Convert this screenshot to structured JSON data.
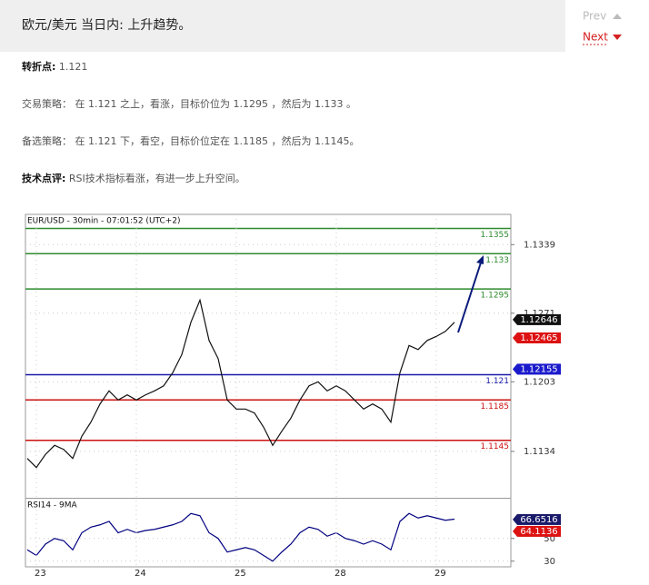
{
  "header": {
    "title": "欧元/美元 当日内: 上升趋势。"
  },
  "nav": {
    "prev": "Prev",
    "next": "Next"
  },
  "notes": [
    {
      "label": "转折点:",
      "text": " 1.121"
    },
    {
      "label": "交易策略：",
      "text": " 在 1.121 之上，看涨，目标价位为 1.1295 ，然后为 1.133 。"
    },
    {
      "label": "备选策略：",
      "text": " 在 1.121 下，看空，目标价位定在 1.1185 ，然后为 1.1145。"
    },
    {
      "label": "技术点评:",
      "text": " RSI技术指标看涨，有进一步上升空间。"
    }
  ],
  "chart_data": [
    {
      "type": "line",
      "title": "EUR/USD - 30min - 07:01:52 (UTC+2)",
      "color": "#111111",
      "categories": [
        null,
        "23",
        null,
        null,
        null,
        null,
        null,
        null,
        null,
        null,
        null,
        null,
        "24",
        null,
        null,
        null,
        null,
        null,
        null,
        null,
        null,
        null,
        null,
        "25",
        null,
        null,
        null,
        null,
        null,
        null,
        null,
        null,
        null,
        null,
        "28",
        null,
        null,
        null,
        null,
        null,
        null,
        null,
        null,
        null,
        null,
        "29",
        null,
        null
      ],
      "values": [
        1.1127,
        1.1118,
        1.1131,
        1.114,
        1.1136,
        1.1127,
        1.1149,
        1.1163,
        1.1181,
        1.1194,
        1.1185,
        1.119,
        1.1185,
        1.119,
        1.1194,
        1.1199,
        1.1212,
        1.123,
        1.1262,
        1.1284,
        1.1244,
        1.1226,
        1.1185,
        1.1176,
        1.1176,
        1.1172,
        1.1158,
        1.114,
        1.1154,
        1.1167,
        1.1185,
        1.1199,
        1.1203,
        1.1194,
        1.1199,
        1.1194,
        1.1185,
        1.1176,
        1.1181,
        1.1176,
        1.1163,
        1.1212,
        1.1239,
        1.1235,
        1.1244,
        1.1248,
        1.1253,
        1.1262
      ],
      "ylim": [
        1.1088,
        1.1369
      ],
      "yticks": [
        1.1134,
        1.1203,
        1.1271,
        1.1339
      ],
      "levels": [
        {
          "value": 1.1355,
          "color": "#2e8b2e"
        },
        {
          "value": 1.133,
          "color": "#2e8b2e"
        },
        {
          "value": 1.1295,
          "color": "#2e8b2e"
        },
        {
          "value": 1.121,
          "color": "#1a1aaa"
        },
        {
          "value": 1.1185,
          "color": "#cc1111"
        },
        {
          "value": 1.1145,
          "color": "#cc1111"
        }
      ],
      "tags": [
        {
          "value": 1.12646,
          "color": "#111111"
        },
        {
          "value": 1.12465,
          "color": "#dd1111"
        },
        {
          "value": 1.12155,
          "color": "#1a1acc"
        }
      ]
    },
    {
      "type": "line",
      "title": "RSI14 - 9MA",
      "color": "#000080",
      "values": [
        40,
        35,
        45,
        50,
        48,
        40,
        55,
        60,
        62,
        65,
        55,
        58,
        55,
        57,
        58,
        60,
        62,
        65,
        72,
        70,
        55,
        50,
        38,
        40,
        42,
        40,
        35,
        30,
        38,
        45,
        55,
        60,
        58,
        52,
        55,
        50,
        48,
        45,
        48,
        45,
        40,
        65,
        72,
        68,
        70,
        68,
        66,
        67
      ],
      "ylim": [
        25,
        85
      ],
      "yticks": [
        30,
        50
      ],
      "tags": [
        {
          "value": 66.6516,
          "color": "#1a1a6a"
        },
        {
          "value": 64.1136,
          "color": "#dd1111"
        }
      ]
    }
  ]
}
